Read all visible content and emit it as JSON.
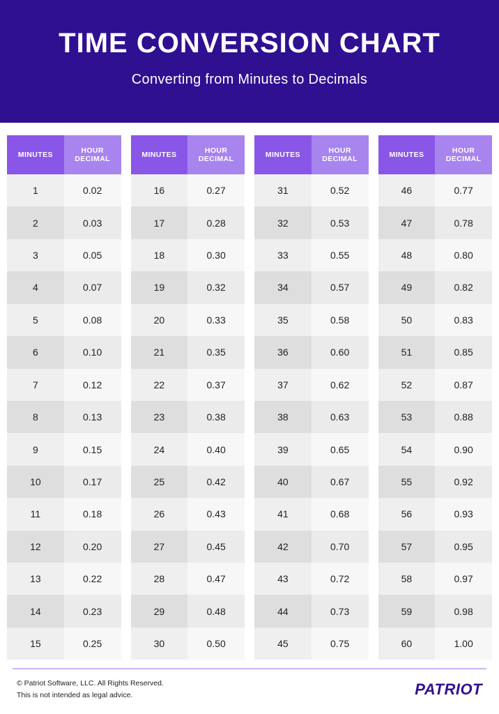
{
  "header": {
    "title": "TIME CONVERSION CHART",
    "subtitle": "Converting from Minutes to Decimals",
    "background_color": "#2f1091",
    "text_color": "#ffffff",
    "title_fontsize": 40,
    "subtitle_fontsize": 20
  },
  "table": {
    "type": "table",
    "column_headers": {
      "minutes": "MINUTES",
      "decimal": "HOUR DECIMAL"
    },
    "header_colors": {
      "minutes_bg": "#8a56e8",
      "decimal_bg": "#a884ef",
      "text": "#ffffff"
    },
    "row_colors": {
      "minutes_even": "#dedede",
      "minutes_odd": "#efefef",
      "decimal_even": "#ebebeb",
      "decimal_odd": "#f7f7f7"
    },
    "cell_fontsize": 14,
    "header_fontsize": 10.5,
    "num_column_groups": 4,
    "rows_per_group": 15,
    "column_groups": [
      [
        {
          "m": "1",
          "d": "0.02"
        },
        {
          "m": "2",
          "d": "0.03"
        },
        {
          "m": "3",
          "d": "0.05"
        },
        {
          "m": "4",
          "d": "0.07"
        },
        {
          "m": "5",
          "d": "0.08"
        },
        {
          "m": "6",
          "d": "0.10"
        },
        {
          "m": "7",
          "d": "0.12"
        },
        {
          "m": "8",
          "d": "0.13"
        },
        {
          "m": "9",
          "d": "0.15"
        },
        {
          "m": "10",
          "d": "0.17"
        },
        {
          "m": "11",
          "d": "0.18"
        },
        {
          "m": "12",
          "d": "0.20"
        },
        {
          "m": "13",
          "d": "0.22"
        },
        {
          "m": "14",
          "d": "0.23"
        },
        {
          "m": "15",
          "d": "0.25"
        }
      ],
      [
        {
          "m": "16",
          "d": "0.27"
        },
        {
          "m": "17",
          "d": "0.28"
        },
        {
          "m": "18",
          "d": "0.30"
        },
        {
          "m": "19",
          "d": "0.32"
        },
        {
          "m": "20",
          "d": "0.33"
        },
        {
          "m": "21",
          "d": "0.35"
        },
        {
          "m": "22",
          "d": "0.37"
        },
        {
          "m": "23",
          "d": "0.38"
        },
        {
          "m": "24",
          "d": "0.40"
        },
        {
          "m": "25",
          "d": "0.42"
        },
        {
          "m": "26",
          "d": "0.43"
        },
        {
          "m": "27",
          "d": "0.45"
        },
        {
          "m": "28",
          "d": "0.47"
        },
        {
          "m": "29",
          "d": "0.48"
        },
        {
          "m": "30",
          "d": "0.50"
        }
      ],
      [
        {
          "m": "31",
          "d": "0.52"
        },
        {
          "m": "32",
          "d": "0.53"
        },
        {
          "m": "33",
          "d": "0.55"
        },
        {
          "m": "34",
          "d": "0.57"
        },
        {
          "m": "35",
          "d": "0.58"
        },
        {
          "m": "36",
          "d": "0.60"
        },
        {
          "m": "37",
          "d": "0.62"
        },
        {
          "m": "38",
          "d": "0.63"
        },
        {
          "m": "39",
          "d": "0.65"
        },
        {
          "m": "40",
          "d": "0.67"
        },
        {
          "m": "41",
          "d": "0.68"
        },
        {
          "m": "42",
          "d": "0.70"
        },
        {
          "m": "43",
          "d": "0.72"
        },
        {
          "m": "44",
          "d": "0.73"
        },
        {
          "m": "45",
          "d": "0.75"
        }
      ],
      [
        {
          "m": "46",
          "d": "0.77"
        },
        {
          "m": "47",
          "d": "0.78"
        },
        {
          "m": "48",
          "d": "0.80"
        },
        {
          "m": "49",
          "d": "0.82"
        },
        {
          "m": "50",
          "d": "0.83"
        },
        {
          "m": "51",
          "d": "0.85"
        },
        {
          "m": "52",
          "d": "0.87"
        },
        {
          "m": "53",
          "d": "0.88"
        },
        {
          "m": "54",
          "d": "0.90"
        },
        {
          "m": "55",
          "d": "0.92"
        },
        {
          "m": "56",
          "d": "0.93"
        },
        {
          "m": "57",
          "d": "0.95"
        },
        {
          "m": "58",
          "d": "0.97"
        },
        {
          "m": "59",
          "d": "0.98"
        },
        {
          "m": "60",
          "d": "1.00"
        }
      ]
    ]
  },
  "footer": {
    "copyright": "© Patriot Software, LLC. All Rights Reserved.",
    "disclaimer": "This is not intended as legal advice.",
    "brand": "PATRIOT",
    "brand_color": "#2f1091",
    "border_color": "#c9b3f3",
    "text_fontsize": 10.5,
    "brand_fontsize": 22
  }
}
